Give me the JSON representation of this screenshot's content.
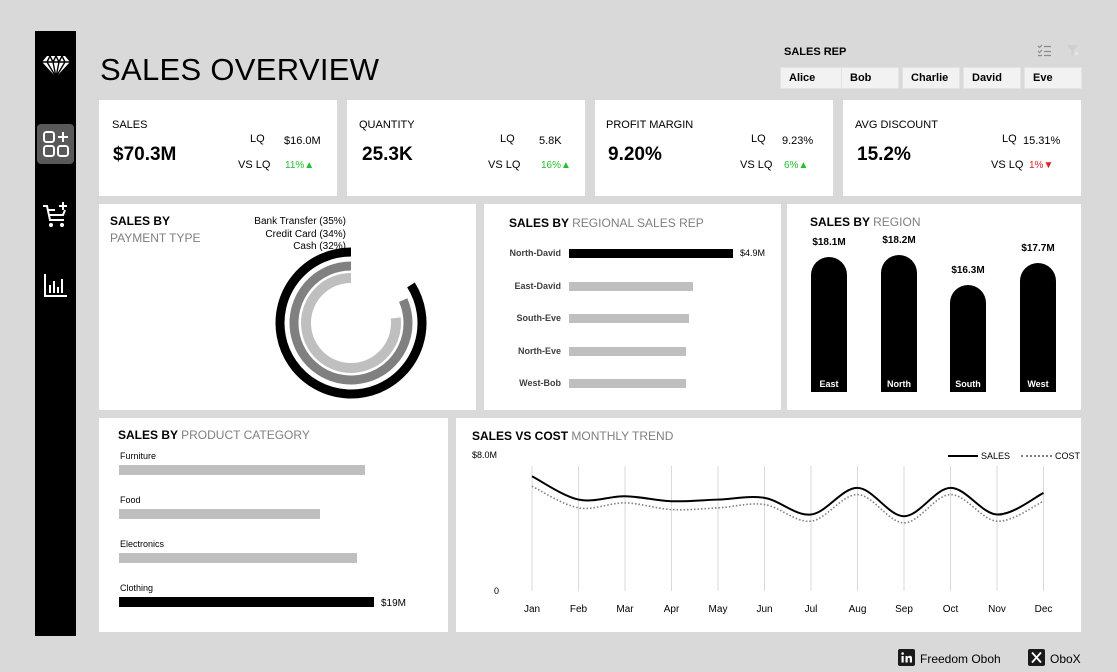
{
  "header": {
    "title": "SALES OVERVIEW"
  },
  "slicer": {
    "label": "SALES REP",
    "options": [
      "Alice",
      "Bob",
      "Charlie",
      "David",
      "Eve"
    ]
  },
  "sidebar": {
    "items": [
      "logo-icon",
      "dashboard-icon",
      "cart-add-icon",
      "bar-chart-icon"
    ]
  },
  "kpis": [
    {
      "label": "SALES",
      "value": "$70.3M",
      "lq_label": "LQ",
      "lq_value": "$16.0M",
      "vs_label": "VS LQ",
      "vs_value": "11%",
      "trend": "up"
    },
    {
      "label": "QUANTITY",
      "value": "25.3K",
      "lq_label": "LQ",
      "lq_value": "5.8K",
      "vs_label": "VS LQ",
      "vs_value": "16%",
      "trend": "up"
    },
    {
      "label": "PROFIT MARGIN",
      "value": "9.20%",
      "lq_label": "LQ",
      "lq_value": "9.23%",
      "vs_label": "VS LQ",
      "vs_value": "6%",
      "trend": "up"
    },
    {
      "label": "AVG DISCOUNT",
      "value": "15.2%",
      "lq_label": "LQ",
      "lq_value": "15.31%",
      "vs_label": "VS LQ",
      "vs_value": "1%",
      "trend": "down"
    }
  ],
  "payment": {
    "title": "SALES BY",
    "subtitle": "PAYMENT TYPE",
    "labels": [
      "Bank Transfer (35%)",
      "Credit Card (34%)",
      "Cash (32%)"
    ]
  },
  "regional_rep": {
    "title": "SALES BY",
    "subtitle": "REGIONAL SALES REP",
    "top_value": "$4.9M"
  },
  "region": {
    "title": "SALES BY",
    "subtitle": "REGION",
    "values": [
      "$18.1M",
      "$18.2M",
      "$16.3M",
      "$17.7M"
    ],
    "names": [
      "East",
      "North",
      "South",
      "West"
    ]
  },
  "category": {
    "title": "SALES BY",
    "subtitle": "PRODUCT CATEGORY",
    "names": [
      "Furniture",
      "Food",
      "Electronics",
      "Clothing"
    ],
    "top_value": "$19M"
  },
  "trend": {
    "title": "SALES VS COST",
    "subtitle": "MONTHLY TREND",
    "y_top": "$8.0M",
    "y_zero": "0",
    "legend_sales": "SALES",
    "legend_cost": "COST"
  },
  "chart_data": [
    {
      "type": "pie",
      "categories": [
        "Bank Transfer",
        "Credit Card",
        "Cash"
      ],
      "values": [
        35,
        34,
        32
      ]
    },
    {
      "type": "bar",
      "categories": [
        "North-David",
        "East-David",
        "South-Eve",
        "North-Eve",
        "West-Bob"
      ],
      "values": [
        4.9,
        3.7,
        3.6,
        3.5,
        3.5
      ],
      "highlight": [
        0
      ]
    },
    {
      "type": "bar",
      "categories": [
        "East",
        "North",
        "South",
        "West"
      ],
      "values": [
        18.1,
        18.2,
        16.3,
        17.7
      ],
      "ylim": [
        0,
        18.2
      ]
    },
    {
      "type": "bar",
      "categories": [
        "Furniture",
        "Food",
        "Electronics",
        "Clothing"
      ],
      "values": [
        18.3,
        15.0,
        17.7,
        19.0
      ],
      "highlight": [
        3
      ]
    },
    {
      "type": "line",
      "x": [
        "Jan",
        "Feb",
        "Mar",
        "Apr",
        "May",
        "Jun",
        "Jul",
        "Aug",
        "Sep",
        "Oct",
        "Nov",
        "Dec"
      ],
      "ylim": [
        0,
        8.0
      ],
      "series": [
        {
          "name": "SALES",
          "values": [
            6.9,
            5.5,
            5.7,
            5.4,
            5.5,
            5.6,
            4.6,
            6.2,
            4.5,
            6.2,
            4.6,
            5.9
          ]
        },
        {
          "name": "COST",
          "values": [
            6.3,
            5.0,
            5.3,
            4.9,
            5.0,
            5.2,
            4.2,
            5.8,
            4.1,
            5.8,
            4.2,
            5.4
          ]
        }
      ]
    }
  ]
}
